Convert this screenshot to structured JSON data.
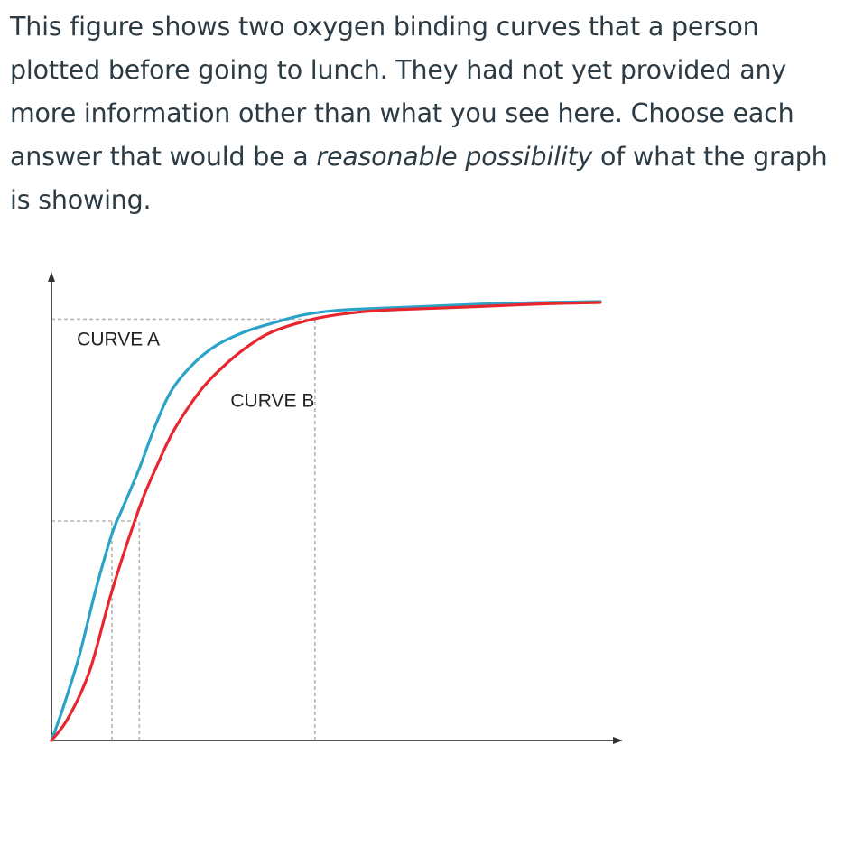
{
  "question": {
    "text_before": "This figure shows two oxygen binding curves that a person plotted before going to lunch.  They had not yet provided any more information other than what you see here.  Choose each answer that would be a ",
    "text_emphasis": "reasonable possibility",
    "text_after": " of what the graph is showing."
  },
  "chart_data": {
    "type": "line",
    "title": "",
    "xlabel": "",
    "ylabel": "",
    "xlim": [
      0,
      1
    ],
    "ylim": [
      0,
      1
    ],
    "grid": false,
    "axis_ticks": "none",
    "series": [
      {
        "name": "CURVE A",
        "color": "#2ba3c8",
        "x": [
          0.0,
          0.02,
          0.05,
          0.08,
          0.11,
          0.13,
          0.16,
          0.19,
          0.22,
          0.26,
          0.3,
          0.35,
          0.4,
          0.46,
          0.52,
          0.6,
          0.7,
          0.8,
          0.9,
          1.0
        ],
        "y": [
          0.0,
          0.07,
          0.19,
          0.34,
          0.47,
          0.53,
          0.62,
          0.72,
          0.8,
          0.86,
          0.9,
          0.93,
          0.95,
          0.97,
          0.98,
          0.985,
          0.99,
          0.995,
          0.998,
          1.0
        ]
      },
      {
        "name": "CURVE B",
        "color": "#e8262e",
        "x": [
          0.0,
          0.03,
          0.07,
          0.11,
          0.16,
          0.19,
          0.22,
          0.25,
          0.28,
          0.32,
          0.36,
          0.4,
          0.46,
          0.52,
          0.6,
          0.7,
          0.8,
          0.9,
          1.0
        ],
        "y": [
          0.0,
          0.05,
          0.16,
          0.34,
          0.53,
          0.62,
          0.7,
          0.76,
          0.81,
          0.86,
          0.9,
          0.93,
          0.955,
          0.97,
          0.98,
          0.985,
          0.99,
          0.995,
          0.998
        ]
      }
    ],
    "reference_lines": [
      {
        "orientation": "horizontal",
        "y": 0.96,
        "x_to": 0.48,
        "style": "dashed"
      },
      {
        "orientation": "horizontal",
        "y": 0.5,
        "x_to": 0.16,
        "style": "dashed"
      },
      {
        "orientation": "vertical",
        "x": 0.11,
        "y_to": 0.5,
        "style": "dashed"
      },
      {
        "orientation": "vertical",
        "x": 0.16,
        "y_to": 0.5,
        "style": "dashed"
      },
      {
        "orientation": "vertical",
        "x": 0.48,
        "y_to": 0.96,
        "style": "dashed"
      }
    ],
    "annotations": [
      {
        "text": "CURVE A",
        "x": 0.02,
        "y": 0.9
      },
      {
        "text": "CURVE B",
        "x": 0.3,
        "y": 0.76
      }
    ]
  }
}
